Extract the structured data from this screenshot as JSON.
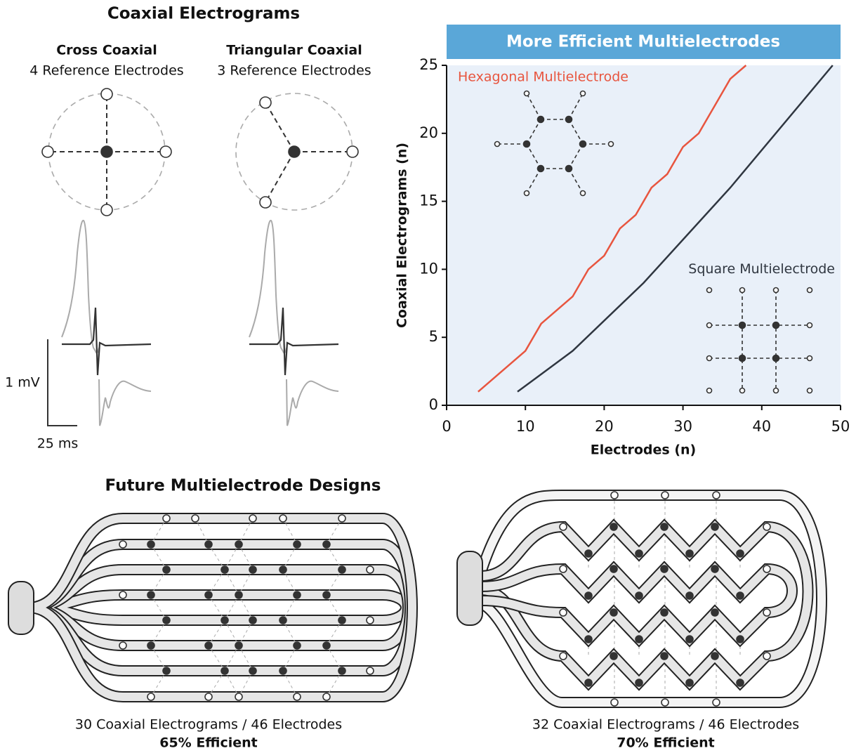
{
  "panel_left": {
    "title": "Coaxial Electrograms",
    "cross": {
      "title": "Cross Coaxial",
      "subtitle": "4 Reference Electrodes"
    },
    "triangular": {
      "title": "Triangular Coaxial",
      "subtitle": "3 Reference Electrodes"
    },
    "scale_voltage": "1 mV",
    "scale_time": "25 ms"
  },
  "chart_data": {
    "type": "line",
    "title": "More Efficient Multielectrodes",
    "x_label": "Electrodes (n)",
    "y_label": "Coaxial Electrograms (n)",
    "xlim": [
      0,
      50
    ],
    "xticks": [
      0,
      10,
      20,
      30,
      40,
      50
    ],
    "ylim": [
      0,
      25
    ],
    "yticks": [
      0,
      5,
      10,
      15,
      20,
      25
    ],
    "series": [
      {
        "name": "Hexagonal Multielectrode",
        "color": "#e8553f",
        "x": [
          4,
          10,
          12,
          16,
          18,
          20,
          22,
          24,
          26,
          28,
          30,
          32,
          34,
          36,
          38
        ],
        "values": [
          1,
          4,
          6,
          8,
          10,
          11,
          13,
          14,
          16,
          17,
          19,
          20,
          22,
          24,
          25
        ]
      },
      {
        "name": "Square Multielectrode",
        "color": "#2f3640",
        "x": [
          9,
          16,
          25,
          36,
          49
        ],
        "values": [
          1,
          4,
          9,
          16,
          25
        ]
      }
    ]
  },
  "panel_bottom": {
    "title": "Future Multielectrode Designs",
    "left": {
      "caption": "30 Coaxial Electrograms / 46 Electrodes",
      "efficiency": "65% Efficient"
    },
    "right": {
      "caption": "32 Coaxial Electrograms / 46 Electrodes",
      "efficiency": "70% Efficient"
    }
  }
}
